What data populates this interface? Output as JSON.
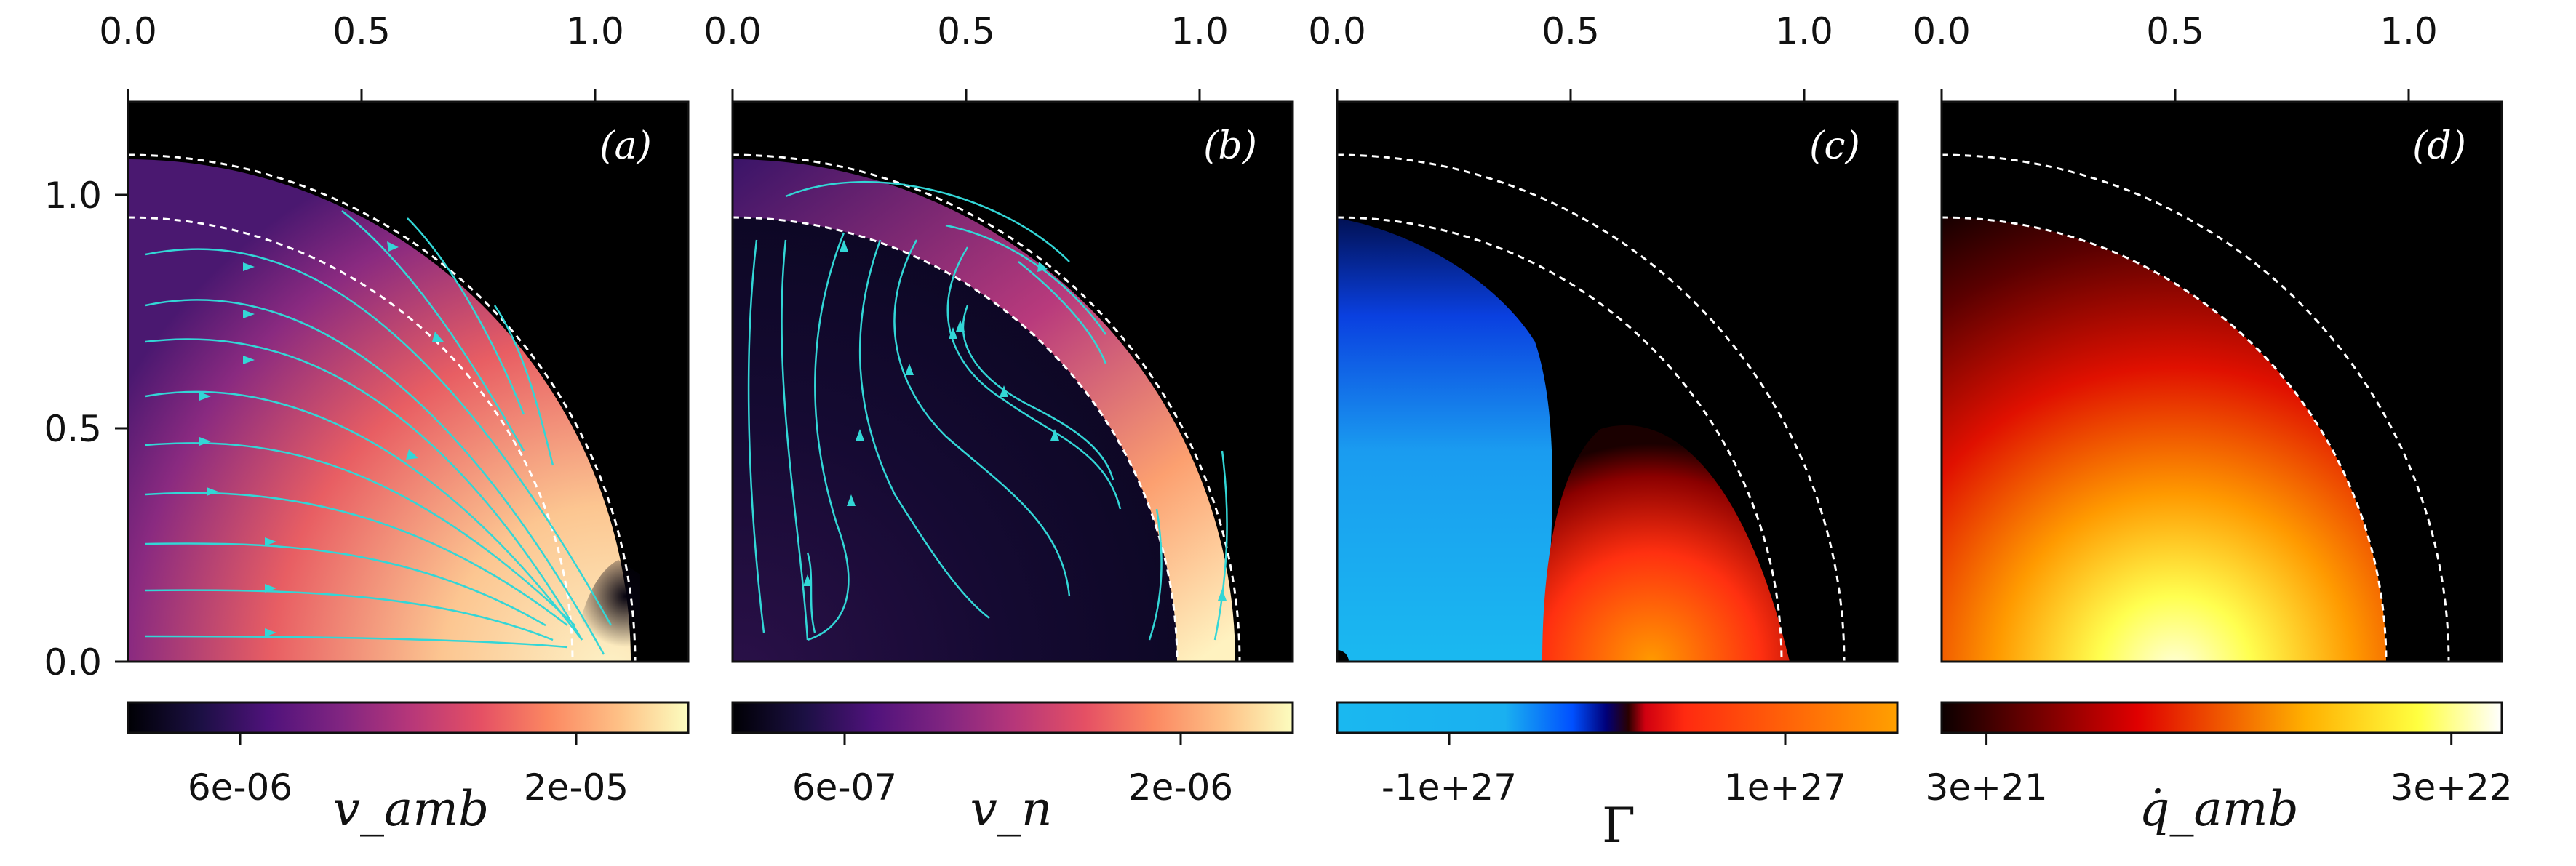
{
  "chart_data": [
    {
      "type": "heatmap",
      "panel_label": "(a)",
      "x_ticks": [
        "0.0",
        "0.5",
        "1.0"
      ],
      "y_ticks": [
        "0.0",
        "0.5",
        "1.0"
      ],
      "xlim": [
        0,
        1.2
      ],
      "ylim": [
        0,
        1.2
      ],
      "boundary_radii": [
        0.97,
        1.1
      ],
      "colormap": "magma",
      "colorbar": {
        "label": "v_amb",
        "ticks": [
          {
            "label": "6e-06",
            "frac": 0.2
          },
          {
            "label": "2e-05",
            "frac": 0.8
          }
        ]
      },
      "streamlines": true,
      "streamline_color": "#33d6d6"
    },
    {
      "type": "heatmap",
      "panel_label": "(b)",
      "x_ticks": [
        "0.0",
        "0.5",
        "1.0"
      ],
      "y_ticks": [],
      "xlim": [
        0,
        1.2
      ],
      "ylim": [
        0,
        1.2
      ],
      "boundary_radii": [
        0.97,
        1.1
      ],
      "colormap": "magma",
      "colorbar": {
        "label": "v_n",
        "ticks": [
          {
            "label": "6e-07",
            "frac": 0.2
          },
          {
            "label": "2e-06",
            "frac": 0.8
          }
        ]
      },
      "streamlines": true,
      "streamline_color": "#33d6d6"
    },
    {
      "type": "heatmap",
      "panel_label": "(c)",
      "x_ticks": [
        "0.0",
        "0.5",
        "1.0"
      ],
      "y_ticks": [],
      "xlim": [
        0,
        1.2
      ],
      "ylim": [
        0,
        1.2
      ],
      "boundary_radii": [
        0.97,
        1.1
      ],
      "colormap": "diverging blue-black-orange",
      "colorbar": {
        "label": "Γ",
        "ticks": [
          {
            "label": "-1e+27",
            "frac": 0.2
          },
          {
            "label": "1e+27",
            "frac": 0.8
          }
        ]
      },
      "streamlines": false
    },
    {
      "type": "heatmap",
      "panel_label": "(d)",
      "x_ticks": [
        "0.0",
        "0.5",
        "1.0"
      ],
      "y_ticks": [],
      "xlim": [
        0,
        1.2
      ],
      "ylim": [
        0,
        1.2
      ],
      "boundary_radii": [
        0.97,
        1.1
      ],
      "colormap": "hot",
      "colorbar": {
        "label": "q̇_amb",
        "ticks": [
          {
            "label": "3e+21",
            "frac": 0.08
          },
          {
            "label": "3e+22",
            "frac": 0.91
          }
        ]
      },
      "streamlines": false
    }
  ],
  "colors": {
    "streamline": "#33d6d6",
    "boundary": "#ffffff",
    "background": "#000000"
  }
}
